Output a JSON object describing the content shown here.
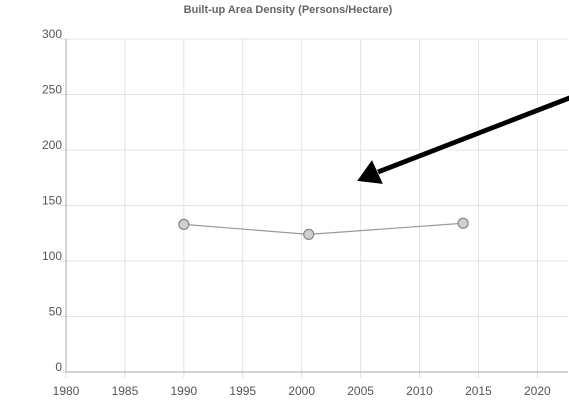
{
  "chart_data": {
    "type": "line",
    "title": "Built-up Area Density (Persons/Hectare)",
    "x": [
      1990,
      2000.6,
      2013.7
    ],
    "series": [
      {
        "name": null,
        "color": "#999999",
        "values": [
          133,
          124,
          134
        ]
      }
    ],
    "xlim": [
      1980,
      2022.6
    ],
    "xticks": [
      1980,
      1985,
      1990,
      1995,
      2000,
      2005,
      2010,
      2015,
      2020
    ],
    "ylim": [
      0,
      300
    ],
    "yticks": [
      0,
      50,
      100,
      150,
      200,
      250,
      300
    ],
    "grid": true
  }
}
